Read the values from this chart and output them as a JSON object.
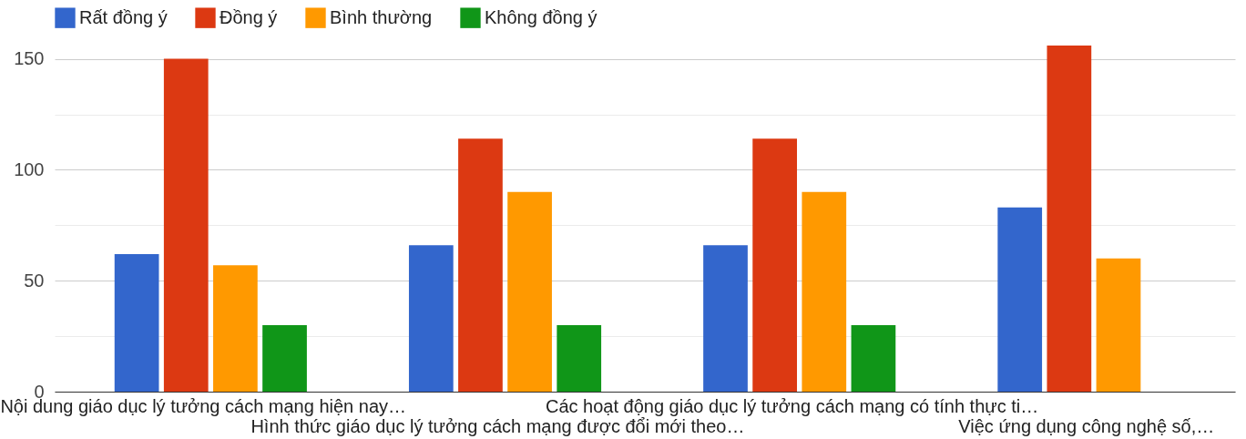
{
  "chart_data": {
    "type": "bar",
    "categories": [
      "Nội dung giáo dục lý tưởng cách mạng hiện nay…",
      "Hình thức giáo dục lý tưởng cách mạng được đổi mới theo…",
      "Các hoạt động giáo dục lý tưởng cách mạng có tính thực ti…",
      "Việc ứng dụng công nghệ số,…"
    ],
    "series": [
      {
        "name": "Rất đồng ý",
        "color": "#3366cc",
        "values": [
          62,
          66,
          66,
          83
        ]
      },
      {
        "name": "Đồng ý",
        "color": "#dc3912",
        "values": [
          150,
          114,
          114,
          156
        ]
      },
      {
        "name": "Bình thường",
        "color": "#ff9900",
        "values": [
          57,
          90,
          90,
          60
        ]
      },
      {
        "name": "Không đồng ý",
        "color": "#109618",
        "values": [
          30,
          30,
          30,
          0
        ]
      }
    ],
    "ylim": [
      0,
      156
    ],
    "yticks": [
      0,
      {
        "value": 25,
        "label": null
      },
      50,
      {
        "value": 75,
        "label": null
      },
      100,
      {
        "value": 125,
        "label": null
      },
      150
    ],
    "grid": "y",
    "legend": "top left"
  }
}
